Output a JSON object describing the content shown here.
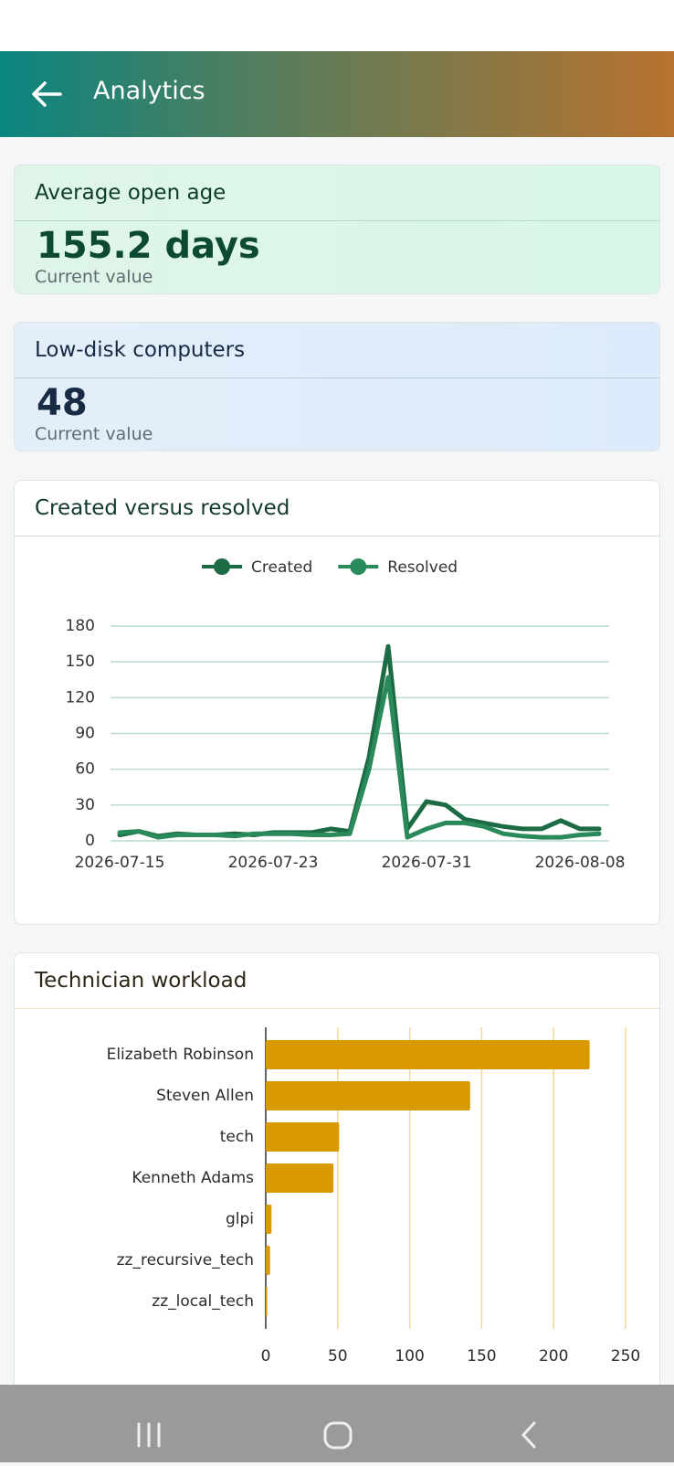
{
  "header": {
    "title": "Analytics"
  },
  "cards": [
    {
      "title": "Average open age",
      "value": "155.2 days",
      "caption": "Current value"
    },
    {
      "title": "Low-disk computers",
      "value": "48",
      "caption": "Current value"
    }
  ],
  "chart_data": [
    {
      "type": "line",
      "title": "Created versus resolved",
      "x": [
        "2026-07-15",
        "2026-07-16",
        "2026-07-17",
        "2026-07-18",
        "2026-07-19",
        "2026-07-20",
        "2026-07-21",
        "2026-07-22",
        "2026-07-23",
        "2026-07-24",
        "2026-07-25",
        "2026-07-26",
        "2026-07-27",
        "2026-07-28",
        "2026-07-29",
        "2026-07-30",
        "2026-07-31",
        "2026-08-01",
        "2026-08-02",
        "2026-08-03",
        "2026-08-04",
        "2026-08-05",
        "2026-08-06",
        "2026-08-07",
        "2026-08-08",
        "2026-08-09"
      ],
      "series": [
        {
          "name": "Created",
          "color": "#1d6b45",
          "values": [
            5,
            8,
            4,
            6,
            5,
            5,
            6,
            5,
            7,
            7,
            7,
            10,
            8,
            70,
            163,
            10,
            33,
            30,
            18,
            15,
            12,
            10,
            10,
            17,
            10,
            10
          ]
        },
        {
          "name": "Resolved",
          "color": "#2a8a5a",
          "values": [
            7,
            8,
            3,
            5,
            5,
            5,
            4,
            6,
            6,
            6,
            5,
            5,
            6,
            60,
            137,
            3,
            10,
            15,
            15,
            12,
            6,
            4,
            3,
            3,
            5,
            6
          ]
        }
      ],
      "xlim": [
        "2026-07-15",
        "2026-08-09"
      ],
      "xticks": [
        "2026-07-15",
        "2026-07-23",
        "2026-07-31",
        "2026-08-08"
      ],
      "ylim": [
        0,
        180
      ],
      "yticks": [
        0,
        30,
        60,
        90,
        120,
        150,
        180
      ],
      "grid": true,
      "legend": "top"
    },
    {
      "type": "hbar",
      "title": "Technician workload",
      "categories": [
        "Elizabeth Robinson",
        "Steven Allen",
        "tech",
        "Kenneth Adams",
        "glpi",
        "zz_recursive_tech",
        "zz_local_tech"
      ],
      "values": [
        225,
        142,
        51,
        47,
        4,
        3,
        1
      ],
      "color": "#d99a00",
      "xlim": [
        0,
        260
      ],
      "xticks": [
        0,
        50,
        100,
        150,
        200,
        250
      ],
      "grid": true
    }
  ]
}
